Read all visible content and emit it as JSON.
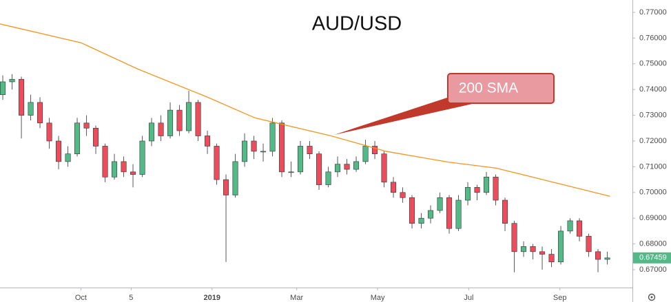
{
  "chart_data": {
    "type": "candlestick",
    "title": "AUD/USD",
    "up_color": "#53b987",
    "down_color": "#eb4d5c",
    "x": [
      0,
      1,
      2,
      3,
      4,
      5,
      6,
      7,
      8,
      9,
      10,
      11,
      12,
      13,
      14,
      15,
      16,
      17,
      18,
      19,
      20,
      21,
      22,
      23,
      24,
      25,
      26,
      27,
      28,
      29,
      30,
      31,
      32,
      33,
      34,
      35,
      36,
      37,
      38,
      39,
      40,
      41,
      42,
      43,
      44,
      45,
      46,
      47,
      48,
      49,
      50,
      51,
      52,
      53,
      54,
      55,
      56,
      57,
      58,
      59,
      60,
      61,
      62,
      63,
      64,
      65
    ],
    "open": [
      0.738,
      0.743,
      0.744,
      0.73,
      0.735,
      0.727,
      0.72,
      0.712,
      0.715,
      0.727,
      0.725,
      0.718,
      0.706,
      0.712,
      0.708,
      0.707,
      0.72,
      0.727,
      0.722,
      0.732,
      0.724,
      0.735,
      0.722,
      0.718,
      0.705,
      0.699,
      0.712,
      0.72,
      0.716,
      0.716,
      0.727,
      0.708,
      0.708,
      0.718,
      0.715,
      0.703,
      0.708,
      0.711,
      0.709,
      0.712,
      0.718,
      0.715,
      0.704,
      0.7,
      0.698,
      0.688,
      0.69,
      0.693,
      0.698,
      0.686,
      0.697,
      0.702,
      0.7,
      0.706,
      0.697,
      0.688,
      0.677,
      0.679,
      0.677,
      0.676,
      0.673,
      0.685,
      0.689,
      0.683,
      0.677,
      0.674
    ],
    "high": [
      0.7455,
      0.746,
      0.745,
      0.738,
      0.737,
      0.729,
      0.722,
      0.718,
      0.729,
      0.73,
      0.726,
      0.719,
      0.715,
      0.714,
      0.711,
      0.722,
      0.729,
      0.73,
      0.735,
      0.734,
      0.7395,
      0.736,
      0.724,
      0.719,
      0.707,
      0.715,
      0.723,
      0.722,
      0.719,
      0.729,
      0.728,
      0.712,
      0.72,
      0.72,
      0.716,
      0.71,
      0.714,
      0.713,
      0.714,
      0.7205,
      0.72,
      0.716,
      0.706,
      0.702,
      0.699,
      0.692,
      0.695,
      0.7,
      0.699,
      0.699,
      0.704,
      0.703,
      0.708,
      0.707,
      0.698,
      0.689,
      0.681,
      0.68,
      0.679,
      0.678,
      0.687,
      0.69,
      0.69,
      0.684,
      0.678,
      0.677
    ],
    "low": [
      0.736,
      0.74,
      0.721,
      0.728,
      0.725,
      0.717,
      0.709,
      0.71,
      0.714,
      0.722,
      0.715,
      0.704,
      0.705,
      0.706,
      0.702,
      0.706,
      0.718,
      0.72,
      0.721,
      0.722,
      0.723,
      0.72,
      0.715,
      0.703,
      0.673,
      0.698,
      0.71,
      0.713,
      0.712,
      0.714,
      0.706,
      0.706,
      0.707,
      0.713,
      0.701,
      0.702,
      0.706,
      0.707,
      0.708,
      0.711,
      0.713,
      0.702,
      0.698,
      0.696,
      0.686,
      0.686,
      0.688,
      0.692,
      0.684,
      0.685,
      0.695,
      0.697,
      0.699,
      0.695,
      0.685,
      0.669,
      0.675,
      0.674,
      0.67,
      0.671,
      0.672,
      0.684,
      0.681,
      0.675,
      0.669,
      0.672
    ],
    "close": [
      0.743,
      0.744,
      0.73,
      0.735,
      0.727,
      0.72,
      0.712,
      0.715,
      0.727,
      0.725,
      0.718,
      0.706,
      0.712,
      0.708,
      0.707,
      0.72,
      0.727,
      0.722,
      0.732,
      0.724,
      0.735,
      0.722,
      0.718,
      0.705,
      0.699,
      0.712,
      0.72,
      0.716,
      0.716,
      0.727,
      0.708,
      0.708,
      0.718,
      0.715,
      0.703,
      0.708,
      0.711,
      0.709,
      0.712,
      0.718,
      0.715,
      0.704,
      0.7,
      0.698,
      0.688,
      0.69,
      0.693,
      0.698,
      0.686,
      0.697,
      0.702,
      0.7,
      0.706,
      0.697,
      0.688,
      0.677,
      0.679,
      0.677,
      0.676,
      0.673,
      0.685,
      0.689,
      0.683,
      0.677,
      0.674,
      0.67459
    ],
    "sma": {
      "color": "#f7931e",
      "x": [
        -0.3,
        8.4,
        14.5,
        21.9,
        27.1,
        35.3,
        41.2,
        47.9,
        53,
        57.5,
        65.3
      ],
      "values": [
        0.7655,
        0.7582,
        0.748,
        0.7372,
        0.729,
        0.722,
        0.716,
        0.7118,
        0.7095,
        0.7055,
        0.6985
      ]
    },
    "annotation": "200 SMA",
    "last_price": {
      "value": 0.67459,
      "label": "0.67459"
    },
    "xlim": [
      -0.3,
      67.7
    ],
    "xticks": [
      {
        "value": 8.4,
        "label": "Oct"
      },
      {
        "value": 13.8,
        "label": "5"
      },
      {
        "value": 22.5,
        "label": "2019"
      },
      {
        "value": 31.6,
        "label": "Mar"
      },
      {
        "value": 40.3,
        "label": "May"
      },
      {
        "value": 50.1,
        "label": "Jul"
      },
      {
        "value": 59.9,
        "label": "Sep"
      }
    ],
    "ylim": [
      0.66305,
      0.7748
    ],
    "yticks": [
      {
        "value": 0.67,
        "label": "0.67000"
      },
      {
        "value": 0.68,
        "label": "0.68000"
      },
      {
        "value": 0.69,
        "label": "0.69000"
      },
      {
        "value": 0.7,
        "label": "0.70000"
      },
      {
        "value": 0.71,
        "label": "0.71000"
      },
      {
        "value": 0.72,
        "label": "0.72000"
      },
      {
        "value": 0.73,
        "label": "0.73000"
      },
      {
        "value": 0.74,
        "label": "0.74000"
      },
      {
        "value": 0.75,
        "label": "0.75000"
      },
      {
        "value": 0.76,
        "label": "0.76000"
      },
      {
        "value": 0.77,
        "label": "0.77000"
      }
    ]
  }
}
